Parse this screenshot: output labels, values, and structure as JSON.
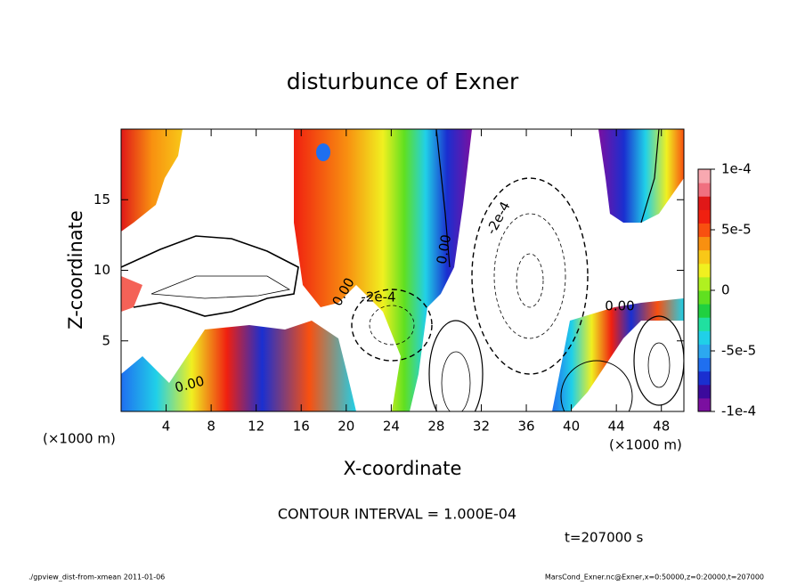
{
  "chart_data": {
    "type": "contour",
    "title": "disturbunce of Exner",
    "xlabel": "X-coordinate",
    "ylabel": "Z-coordinate",
    "x_unit_label": "(×1000 m)",
    "xlim": [
      0,
      50
    ],
    "xticks": [
      4,
      8,
      12,
      16,
      20,
      24,
      28,
      32,
      36,
      40,
      44,
      48
    ],
    "ylim": [
      0,
      20
    ],
    "yticks": [
      5,
      10,
      15
    ],
    "colorbar_lim": [
      -0.0001,
      0.0001
    ],
    "colorbar_ticks": [
      {
        "value": 0.0001,
        "label": "1e-4"
      },
      {
        "value": 5e-05,
        "label": "5e-5"
      },
      0,
      {
        "value": -5e-05,
        "label": "-5e-5"
      },
      {
        "value": -0.0001,
        "label": "-1e-4"
      }
    ],
    "colorbar_colors": [
      "#7b0fa0",
      "#3b0a9c",
      "#1a2fd0",
      "#1f6ff0",
      "#2ca8f0",
      "#20d0e8",
      "#20e0a0",
      "#20d040",
      "#60e020",
      "#b0f020",
      "#f0f020",
      "#f8c818",
      "#f89010",
      "#f85010",
      "#f02010",
      "#e01818",
      "#f07080",
      "#f8a8b0"
    ],
    "contour_labels": [
      "0.00",
      "0.00",
      "-2e-4",
      "-2e-4",
      "0.00",
      "0.00"
    ],
    "contour_interval": "CONTOUR INTERVAL = 1.000E-04",
    "time_label": "t=207000 s",
    "footer_left": "./gpview_dist-from-xmean  2011-01-06",
    "footer_right": "MarsCond_Exner.nc@Exner,x=0:50000,z=0:20000,t=207000"
  }
}
